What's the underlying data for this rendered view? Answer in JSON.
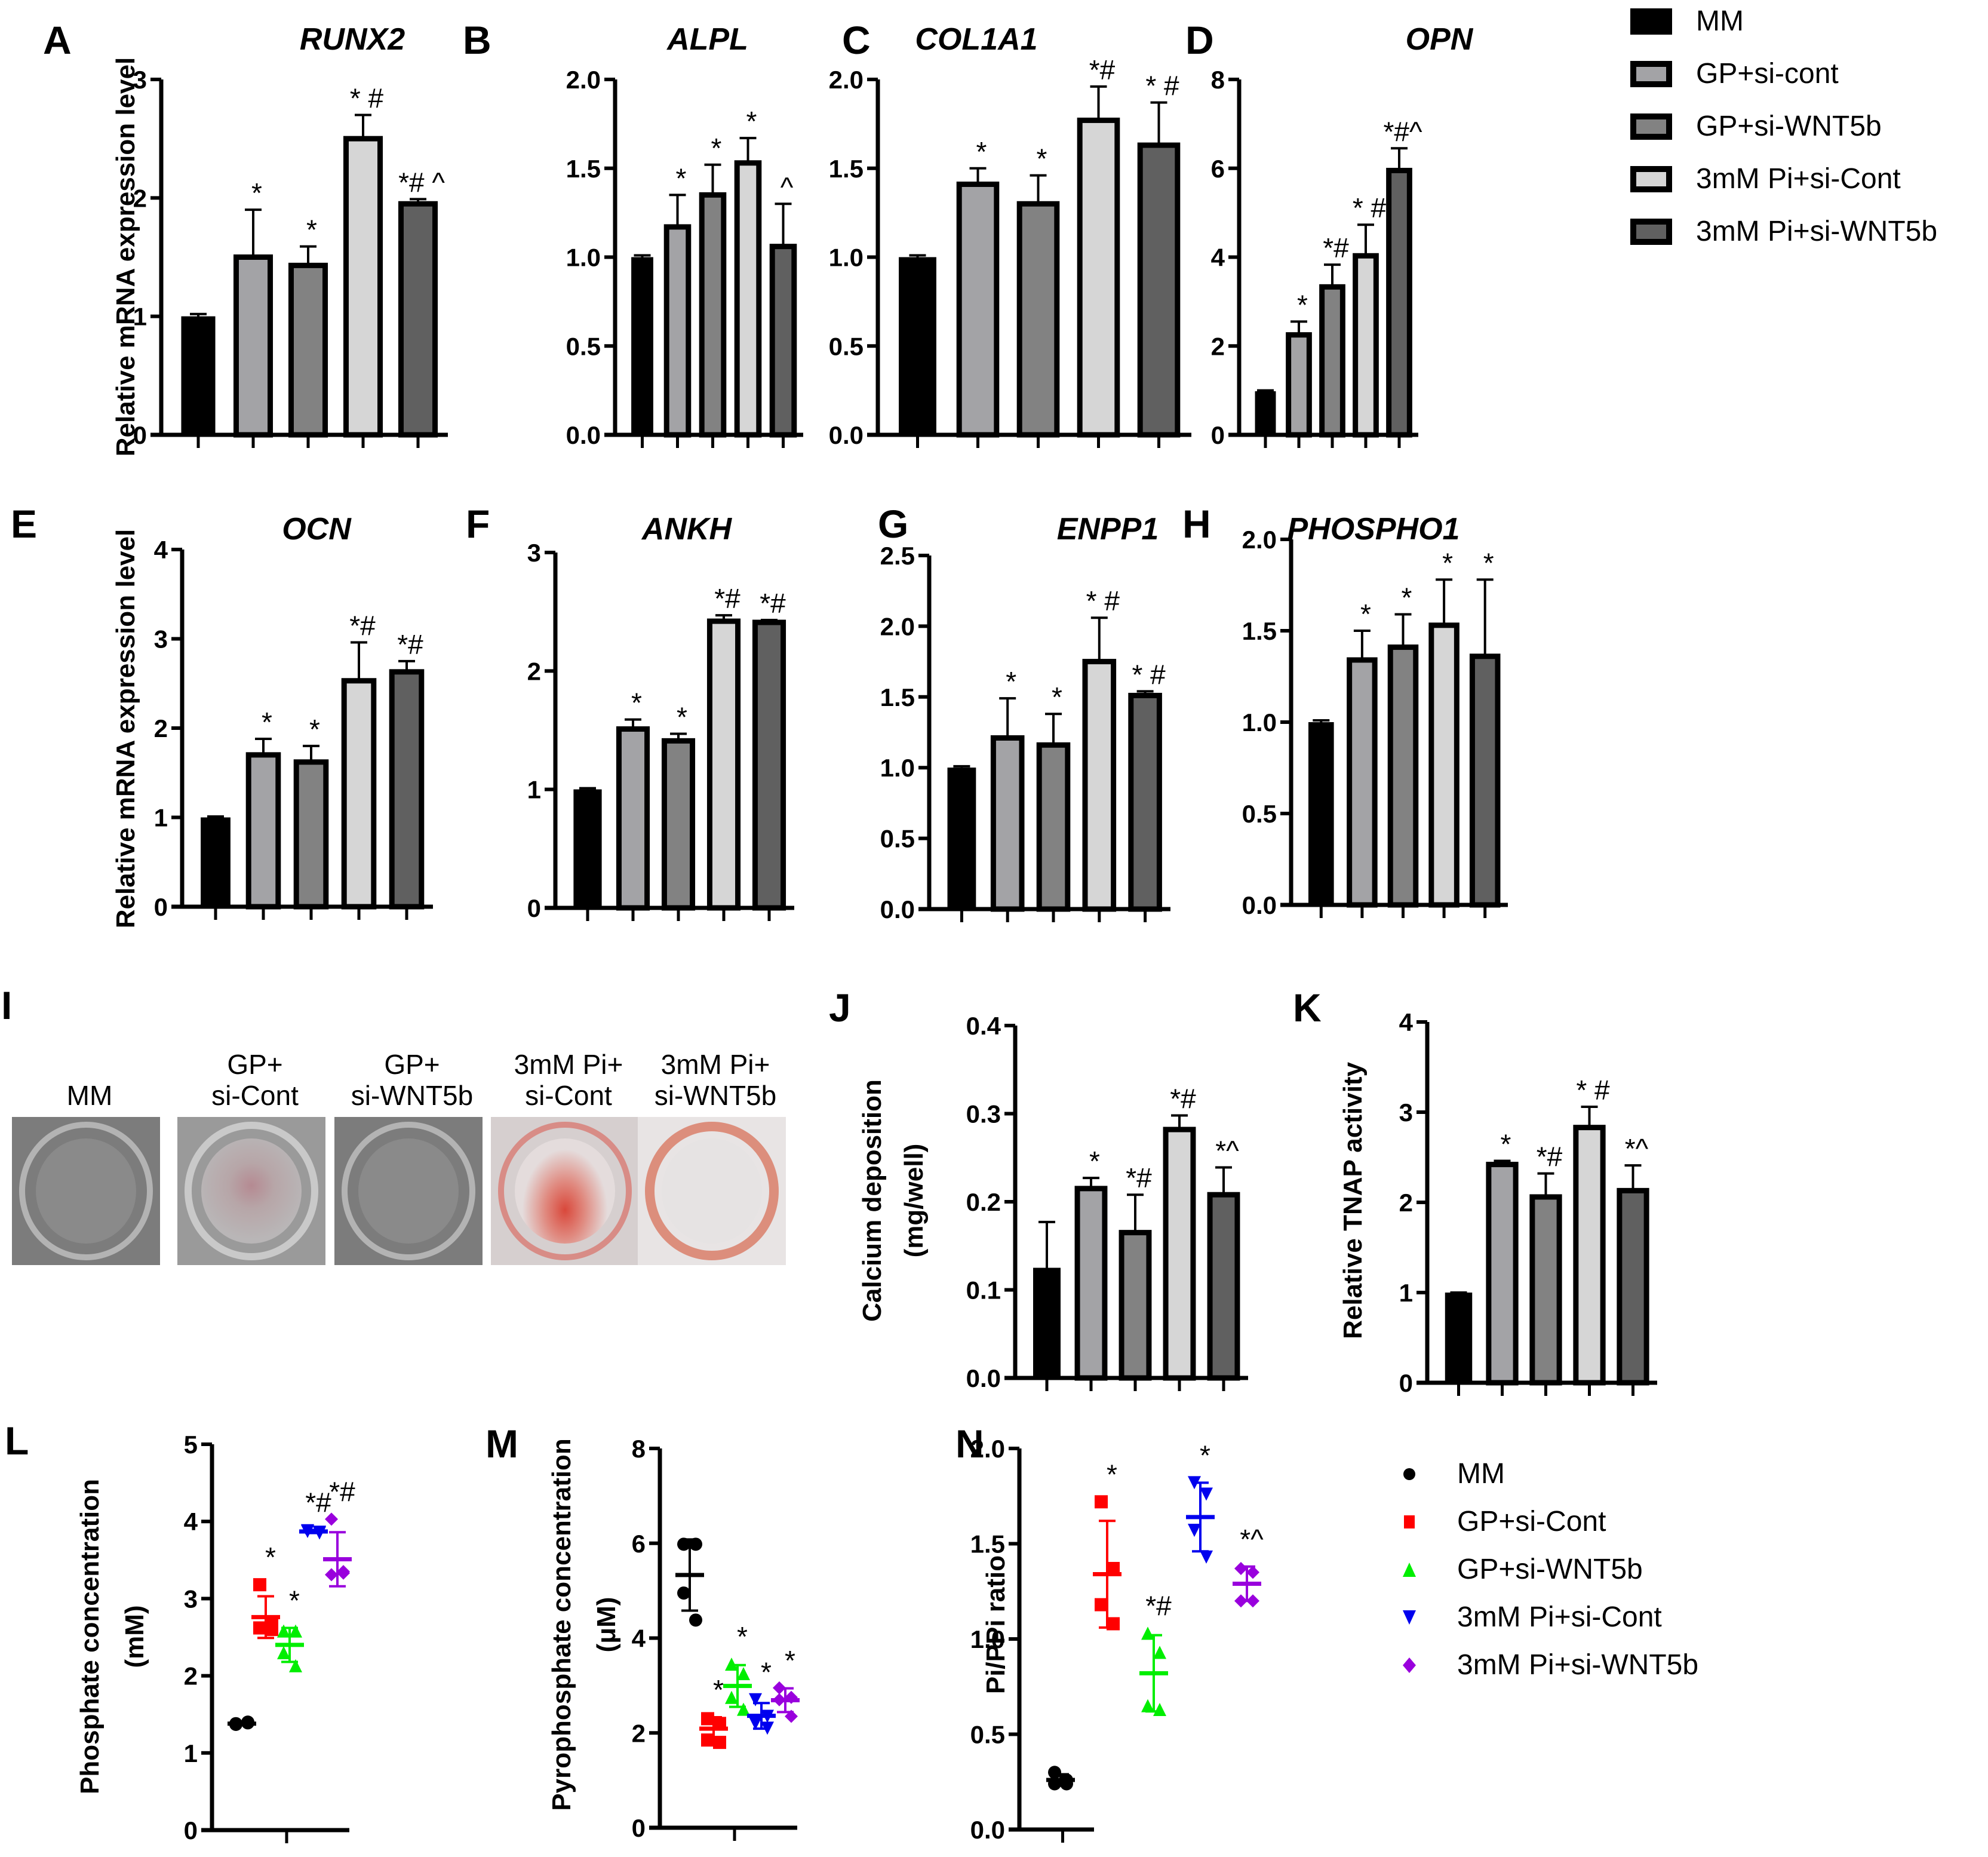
{
  "groups": [
    "MM",
    "GP+si-cont",
    "GP+si-WNT5b",
    "3mM Pi+si-Cont",
    "3mM Pi+si-WNT5b"
  ],
  "group_colors_bar": [
    "#000000",
    "#a3a3a6",
    "#828282",
    "#d6d6d6",
    "#606060"
  ],
  "bar_legend": {
    "items": [
      {
        "label": "MM",
        "fill": "#000000"
      },
      {
        "label": "GP+si-cont",
        "fill": "#a3a3a6"
      },
      {
        "label": "GP+si-WNT5b",
        "fill": "#828282"
      },
      {
        "label": "3mM Pi+si-Cont",
        "fill": "#d6d6d6"
      },
      {
        "label": "3mM Pi+si-WNT5b",
        "fill": "#606060"
      }
    ]
  },
  "scatter_legend": {
    "items": [
      {
        "label": "MM",
        "color": "#000000",
        "marker": "circle"
      },
      {
        "label": "GP+si-Cont",
        "color": "#ff0000",
        "marker": "square"
      },
      {
        "label": "GP+si-WNT5b",
        "color": "#00ee00",
        "marker": "triangle-up"
      },
      {
        "label": "3mM Pi+si-Cont",
        "color": "#0000ee",
        "marker": "triangle-down"
      },
      {
        "label": "3mM Pi+si-WNT5b",
        "color": "#9900dd",
        "marker": "diamond"
      }
    ]
  },
  "staining": {
    "panel_label": "I",
    "columns": [
      {
        "label_line1": "",
        "label_line2": "MM",
        "stain": "none"
      },
      {
        "label_line1": "GP+",
        "label_line2": "si-Cont",
        "stain": "faint"
      },
      {
        "label_line1": "GP+",
        "label_line2": "si-WNT5b",
        "stain": "none"
      },
      {
        "label_line1": "3mM Pi+",
        "label_line2": "si-Cont",
        "stain": "strong"
      },
      {
        "label_line1": "3mM Pi+",
        "label_line2": "si-WNT5b",
        "stain": "ring"
      }
    ]
  },
  "chart_data": [
    {
      "id": "A",
      "type": "bar",
      "title": "RUNX2",
      "ylabel": "Relative mRNA expression level",
      "ylim": [
        0,
        3
      ],
      "yticks": [
        "0",
        "1",
        "2",
        "3"
      ],
      "categories": [
        "MM",
        "GP+si-cont",
        "GP+si-WNT5b",
        "3mM Pi+si-Cont",
        "3mM Pi+si-WNT5b"
      ],
      "values": [
        1.0,
        1.5,
        1.43,
        2.5,
        1.95
      ],
      "errors": [
        0.02,
        0.4,
        0.16,
        0.2,
        0.04
      ],
      "annotations": [
        "",
        "*",
        "*",
        "* #",
        "*# ^"
      ]
    },
    {
      "id": "B",
      "type": "bar",
      "title": "ALPL",
      "ylabel": "",
      "ylim": [
        0,
        2.0
      ],
      "yticks": [
        "0.0",
        "0.5",
        "1.0",
        "1.5",
        "2.0"
      ],
      "categories": [
        "MM",
        "GP+si-cont",
        "GP+si-WNT5b",
        "3mM Pi+si-Cont",
        "3mM Pi+si-WNT5b"
      ],
      "values": [
        1.0,
        1.17,
        1.35,
        1.53,
        1.06
      ],
      "errors": [
        0.01,
        0.18,
        0.17,
        0.14,
        0.24
      ],
      "annotations": [
        "",
        "*",
        "*",
        "*",
        "^"
      ]
    },
    {
      "id": "C",
      "type": "bar",
      "title": "COL1A1",
      "ylabel": "",
      "ylim": [
        0,
        2.0
      ],
      "yticks": [
        "0.0",
        "0.5",
        "1.0",
        "1.5",
        "2.0"
      ],
      "categories": [
        "MM",
        "GP+si-cont",
        "GP+si-WNT5b",
        "3mM Pi+si-Cont",
        "3mM Pi+si-WNT5b"
      ],
      "values": [
        1.0,
        1.41,
        1.3,
        1.77,
        1.63
      ],
      "errors": [
        0.01,
        0.09,
        0.16,
        0.19,
        0.24
      ],
      "annotations": [
        "",
        "*",
        "*",
        "*#",
        "* #"
      ]
    },
    {
      "id": "D",
      "type": "bar",
      "title": "OPN",
      "ylabel": "",
      "ylim": [
        0,
        8
      ],
      "yticks": [
        "0",
        "2",
        "4",
        "6",
        "8"
      ],
      "categories": [
        "MM",
        "GP+si-cont",
        "GP+si-WNT5b",
        "3mM Pi+si-Cont",
        "3mM Pi+si-WNT5b"
      ],
      "values": [
        0.98,
        2.25,
        3.33,
        4.03,
        5.95
      ],
      "errors": [
        0.02,
        0.3,
        0.5,
        0.7,
        0.5
      ],
      "annotations": [
        "",
        "*",
        "*#",
        "* #",
        "*#^"
      ]
    },
    {
      "id": "E",
      "type": "bar",
      "title": "OCN",
      "ylabel": "Relative mRNA expression level",
      "ylim": [
        0,
        4
      ],
      "yticks": [
        "0",
        "1",
        "2",
        "3",
        "4"
      ],
      "categories": [
        "MM",
        "GP+si-cont",
        "GP+si-WNT5b",
        "3mM Pi+si-Cont",
        "3mM Pi+si-WNT5b"
      ],
      "values": [
        1.0,
        1.7,
        1.62,
        2.53,
        2.63
      ],
      "errors": [
        0.01,
        0.18,
        0.18,
        0.43,
        0.12
      ],
      "annotations": [
        "",
        "*",
        "*",
        "*#",
        "*#"
      ]
    },
    {
      "id": "F",
      "type": "bar",
      "title": "ANKH",
      "ylabel": "",
      "ylim": [
        0,
        3
      ],
      "yticks": [
        "0",
        "1",
        "2",
        "3"
      ],
      "categories": [
        "MM",
        "GP+si-cont",
        "GP+si-WNT5b",
        "3mM Pi+si-Cont",
        "3mM Pi+si-WNT5b"
      ],
      "values": [
        1.0,
        1.51,
        1.41,
        2.42,
        2.41
      ],
      "errors": [
        0.01,
        0.08,
        0.06,
        0.05,
        0.02
      ],
      "annotations": [
        "",
        "*",
        "*",
        "*#",
        "*#"
      ]
    },
    {
      "id": "G",
      "type": "bar",
      "title": "ENPP1",
      "ylabel": "",
      "ylim": [
        0,
        2.5
      ],
      "yticks": [
        "0.0",
        "0.5",
        "1.0",
        "1.5",
        "2.0",
        "2.5"
      ],
      "categories": [
        "MM",
        "GP+si-cont",
        "GP+si-WNT5b",
        "3mM Pi+si-Cont",
        "3mM Pi+si-WNT5b"
      ],
      "values": [
        1.0,
        1.21,
        1.16,
        1.75,
        1.51
      ],
      "errors": [
        0.01,
        0.28,
        0.22,
        0.31,
        0.03
      ],
      "annotations": [
        "",
        "*",
        "*",
        "* #",
        "* #"
      ]
    },
    {
      "id": "H",
      "type": "bar",
      "title": "PHOSPHO1",
      "ylabel": "",
      "ylim": [
        0,
        2.0
      ],
      "yticks": [
        "0.0",
        "0.5",
        "1.0",
        "1.5",
        "2.0"
      ],
      "categories": [
        "MM",
        "GP+si-cont",
        "GP+si-WNT5b",
        "3mM Pi+si-Cont",
        "3mM Pi+si-WNT5b"
      ],
      "values": [
        1.0,
        1.34,
        1.41,
        1.53,
        1.36
      ],
      "errors": [
        0.01,
        0.16,
        0.18,
        0.25,
        0.42
      ],
      "annotations": [
        "",
        "*",
        "*",
        "*",
        "*"
      ]
    },
    {
      "id": "J",
      "type": "bar",
      "title": "",
      "ylabel": "Calcium deposition (mg/well)",
      "ylim": [
        0,
        0.4
      ],
      "yticks": [
        "0.0",
        "0.1",
        "0.2",
        "0.3",
        "0.4"
      ],
      "categories": [
        "MM",
        "GP+si-cont",
        "GP+si-WNT5b",
        "3mM Pi+si-Cont",
        "3mM Pi+si-WNT5b"
      ],
      "values": [
        0.125,
        0.215,
        0.165,
        0.282,
        0.208
      ],
      "errors": [
        0.052,
        0.012,
        0.043,
        0.016,
        0.031
      ],
      "annotations": [
        "",
        "*",
        "*#",
        "*#",
        "*^"
      ]
    },
    {
      "id": "K",
      "type": "bar",
      "title": "",
      "ylabel": "Relative TNAP activity",
      "ylim": [
        0,
        4
      ],
      "yticks": [
        "0",
        "1",
        "2",
        "3",
        "4"
      ],
      "categories": [
        "MM",
        "GP+si-cont",
        "GP+si-WNT5b",
        "3mM Pi+si-Cont",
        "3mM Pi+si-WNT5b"
      ],
      "values": [
        1.0,
        2.42,
        2.06,
        2.83,
        2.13
      ],
      "errors": [
        0.0,
        0.04,
        0.26,
        0.23,
        0.28
      ],
      "annotations": [
        "",
        "*",
        "*#",
        "* #",
        "*^"
      ]
    },
    {
      "id": "L",
      "type": "scatter",
      "title": "",
      "ylabel": "Phosphate concentration (mM)",
      "ylim": [
        0,
        5
      ],
      "yticks": [
        "0",
        "1",
        "2",
        "3",
        "4",
        "5"
      ],
      "series": [
        {
          "name": "MM",
          "points": [
            1.38,
            1.4,
            1.37,
            1.39
          ],
          "mean": 1.38,
          "sd": 0.02
        },
        {
          "name": "GP+si-Cont",
          "points": [
            3.18,
            2.68,
            2.62,
            2.6
          ],
          "mean": 2.76,
          "sd": 0.27
        },
        {
          "name": "GP+si-WNT5b",
          "points": [
            2.58,
            2.58,
            2.3,
            2.13
          ],
          "mean": 2.4,
          "sd": 0.22
        },
        {
          "name": "3mM Pi+si-Cont",
          "points": [
            3.88,
            3.86,
            3.87,
            3.85
          ],
          "mean": 3.87,
          "sd": 0.02
        },
        {
          "name": "3mM Pi+si-WNT5b",
          "points": [
            4.03,
            3.33,
            3.31,
            3.35
          ],
          "mean": 3.51,
          "sd": 0.35
        }
      ],
      "annotations": [
        "",
        "*",
        "*",
        "*#",
        "*#"
      ]
    },
    {
      "id": "M",
      "type": "scatter",
      "title": "",
      "ylabel": "Pyrophosphate concentration (μM)",
      "ylim": [
        0,
        8
      ],
      "yticks": [
        "0",
        "2",
        "4",
        "6",
        "8"
      ],
      "series": [
        {
          "name": "MM",
          "points": [
            5.98,
            5.98,
            4.95,
            4.38
          ],
          "mean": 5.33,
          "sd": 0.75
        },
        {
          "name": "GP+si-Cont",
          "points": [
            2.3,
            2.2,
            1.85,
            1.8
          ],
          "mean": 2.09,
          "sd": 0.24
        },
        {
          "name": "GP+si-WNT5b",
          "points": [
            3.45,
            3.25,
            2.75,
            2.5
          ],
          "mean": 2.99,
          "sd": 0.44
        },
        {
          "name": "3mM Pi+si-Cont",
          "points": [
            2.7,
            2.35,
            2.2,
            2.1
          ],
          "mean": 2.36,
          "sd": 0.27
        },
        {
          "name": "3mM Pi+si-WNT5b",
          "points": [
            2.95,
            2.75,
            2.7,
            2.35
          ],
          "mean": 2.69,
          "sd": 0.25
        }
      ],
      "annotations": [
        "",
        "*",
        "*",
        "*",
        "*"
      ]
    },
    {
      "id": "N",
      "type": "scatter",
      "title": "",
      "ylabel": "Pi/PPi ratio",
      "ylim": [
        0,
        2.0
      ],
      "yticks": [
        "0.0",
        "0.5",
        "1.0",
        "1.5",
        "2.0"
      ],
      "series": [
        {
          "name": "MM",
          "points": [
            0.3,
            0.26,
            0.24,
            0.24
          ],
          "mean": 0.26,
          "sd": 0.03
        },
        {
          "name": "GP+si-Cont",
          "points": [
            1.72,
            1.37,
            1.18,
            1.08
          ],
          "mean": 1.34,
          "sd": 0.28
        },
        {
          "name": "GP+si-WNT5b",
          "points": [
            1.03,
            0.93,
            0.65,
            0.63
          ],
          "mean": 0.82,
          "sd": 0.2
        },
        {
          "name": "3mM Pi+si-Cont",
          "points": [
            1.82,
            1.76,
            1.57,
            1.43
          ],
          "mean": 1.64,
          "sd": 0.18
        },
        {
          "name": "3mM Pi+si-WNT5b",
          "points": [
            1.37,
            1.35,
            1.2,
            1.2
          ],
          "mean": 1.29,
          "sd": 0.09
        }
      ],
      "annotations": [
        "",
        "*",
        "*#",
        "*",
        "*^"
      ]
    }
  ]
}
